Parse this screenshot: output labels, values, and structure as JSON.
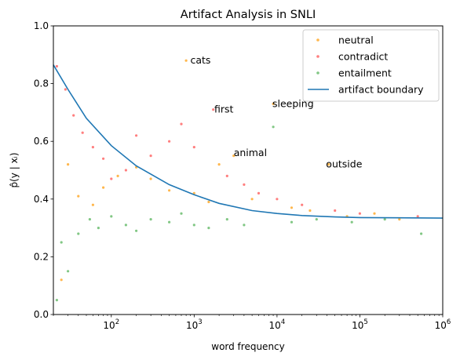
{
  "chart_data": {
    "type": "scatter",
    "title": "Artifact Analysis in SNLI",
    "xlabel": "word frequency",
    "ylabel": "p̂(y | xᵢ)",
    "x_scale": "log",
    "xlim": [
      20,
      1000000
    ],
    "ylim": [
      0.0,
      1.0
    ],
    "x_ticks": [
      {
        "value": 100,
        "base": "10",
        "exp": "2"
      },
      {
        "value": 1000,
        "base": "10",
        "exp": "3"
      },
      {
        "value": 10000,
        "base": "10",
        "exp": "4"
      },
      {
        "value": 100000,
        "base": "10",
        "exp": "5"
      },
      {
        "value": 1000000,
        "base": "10",
        "exp": "6"
      }
    ],
    "y_ticks": [
      "0.0",
      "0.2",
      "0.4",
      "0.6",
      "0.8",
      "1.0"
    ],
    "y_tick_values": [
      0.0,
      0.2,
      0.4,
      0.6,
      0.8,
      1.0
    ],
    "grid": false,
    "legend_position": "top-right",
    "series": [
      {
        "name": "neutral",
        "kind": "scatter",
        "color": "#FFB74D",
        "points": [
          [
            25,
            0.12
          ],
          [
            30,
            0.52
          ],
          [
            40,
            0.41
          ],
          [
            60,
            0.38
          ],
          [
            80,
            0.44
          ],
          [
            120,
            0.48
          ],
          [
            200,
            0.51
          ],
          [
            300,
            0.47
          ],
          [
            500,
            0.43
          ],
          [
            800,
            0.88
          ],
          [
            1000,
            0.42
          ],
          [
            1500,
            0.39
          ],
          [
            2000,
            0.52
          ],
          [
            3000,
            0.55
          ],
          [
            5000,
            0.4
          ],
          [
            9000,
            0.73
          ],
          [
            15000,
            0.37
          ],
          [
            25000,
            0.36
          ],
          [
            42000,
            0.52
          ],
          [
            70000,
            0.34
          ],
          [
            150000,
            0.35
          ],
          [
            300000,
            0.33
          ]
        ]
      },
      {
        "name": "contradict",
        "kind": "scatter",
        "color": "#FF7F7F",
        "points": [
          [
            22,
            0.86
          ],
          [
            28,
            0.78
          ],
          [
            35,
            0.69
          ],
          [
            45,
            0.63
          ],
          [
            60,
            0.58
          ],
          [
            80,
            0.54
          ],
          [
            100,
            0.47
          ],
          [
            150,
            0.5
          ],
          [
            200,
            0.62
          ],
          [
            300,
            0.55
          ],
          [
            500,
            0.6
          ],
          [
            700,
            0.66
          ],
          [
            1000,
            0.58
          ],
          [
            1700,
            0.71
          ],
          [
            2500,
            0.48
          ],
          [
            4000,
            0.45
          ],
          [
            6000,
            0.42
          ],
          [
            10000,
            0.4
          ],
          [
            20000,
            0.38
          ],
          [
            50000,
            0.36
          ],
          [
            100000,
            0.35
          ],
          [
            500000,
            0.34
          ]
        ]
      },
      {
        "name": "entailment",
        "kind": "scatter",
        "color": "#81C784",
        "points": [
          [
            22,
            0.05
          ],
          [
            25,
            0.25
          ],
          [
            30,
            0.15
          ],
          [
            40,
            0.28
          ],
          [
            55,
            0.33
          ],
          [
            70,
            0.3
          ],
          [
            100,
            0.34
          ],
          [
            150,
            0.31
          ],
          [
            200,
            0.29
          ],
          [
            300,
            0.33
          ],
          [
            500,
            0.32
          ],
          [
            700,
            0.35
          ],
          [
            1000,
            0.31
          ],
          [
            1500,
            0.3
          ],
          [
            2500,
            0.33
          ],
          [
            4000,
            0.31
          ],
          [
            9000,
            0.65
          ],
          [
            15000,
            0.32
          ],
          [
            30000,
            0.33
          ],
          [
            80000,
            0.32
          ],
          [
            200000,
            0.33
          ],
          [
            550000,
            0.28
          ]
        ]
      },
      {
        "name": "artifact boundary",
        "kind": "line",
        "color": "#1F77B4",
        "x": [
          20,
          30,
          50,
          100,
          200,
          500,
          1000,
          2000,
          5000,
          10000,
          20000,
          50000,
          100000,
          1000000
        ],
        "y": [
          0.865,
          0.78,
          0.68,
          0.585,
          0.515,
          0.45,
          0.415,
          0.385,
          0.36,
          0.35,
          0.343,
          0.338,
          0.336,
          0.334
        ]
      }
    ],
    "annotations": [
      {
        "text": "cats",
        "x": 900,
        "y": 0.88
      },
      {
        "text": "first",
        "x": 1750,
        "y": 0.71
      },
      {
        "text": "sleeping",
        "x": 8800,
        "y": 0.73
      },
      {
        "text": "animal",
        "x": 3000,
        "y": 0.56
      },
      {
        "text": "outside",
        "x": 39000,
        "y": 0.52
      }
    ]
  }
}
